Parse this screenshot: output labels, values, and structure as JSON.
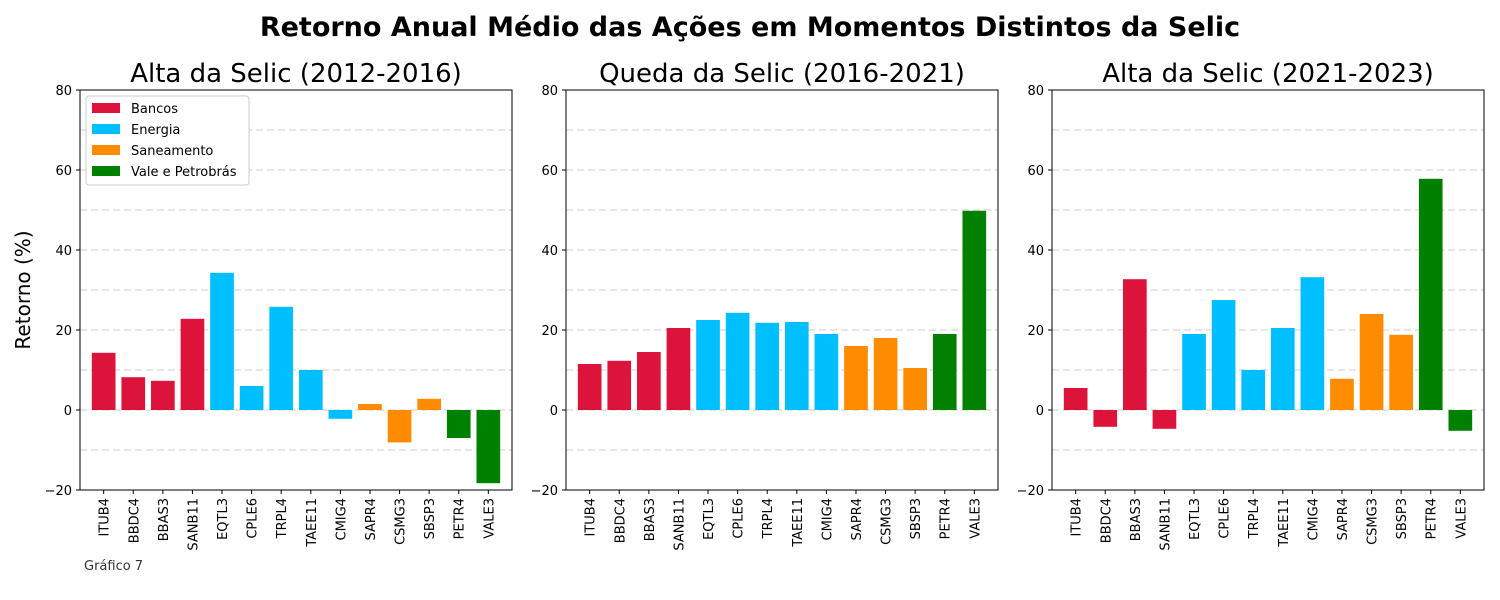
{
  "figure": {
    "title": "Retorno Anual Médio das Ações em Momentos Distintos da Selic",
    "caption": "Gráfico 7",
    "ylabel": "Retorno (%)"
  },
  "colors": {
    "Bancos": "#dc143c",
    "Energia": "#00bfff",
    "Saneamento": "#ff8c00",
    "Vale e Petrobrás": "#008000"
  },
  "legend": {
    "placement": "top-left",
    "entries": [
      "Bancos",
      "Energia",
      "Saneamento",
      "Vale e Petrobrás"
    ]
  },
  "chart_data": [
    {
      "type": "bar",
      "title": "Alta da Selic (2012-2016)",
      "categories": [
        "ITUB4",
        "BBDC4",
        "BBAS3",
        "SANB11",
        "EQTL3",
        "CPLE6",
        "TRPL4",
        "TAEE11",
        "CMIG4",
        "SAPR4",
        "CSMG3",
        "SBSP3",
        "PETR4",
        "VALE3"
      ],
      "groups": [
        "Bancos",
        "Bancos",
        "Bancos",
        "Bancos",
        "Energia",
        "Energia",
        "Energia",
        "Energia",
        "Energia",
        "Saneamento",
        "Saneamento",
        "Saneamento",
        "Vale e Petrobrás",
        "Vale e Petrobrás"
      ],
      "values": [
        14.3,
        8.2,
        7.3,
        22.8,
        34.3,
        6.0,
        25.8,
        10.0,
        -2.2,
        1.5,
        -8.1,
        2.8,
        -7.0,
        -18.3
      ],
      "ylim": [
        -20,
        80
      ],
      "yticks": [
        -20,
        0,
        20,
        40,
        60,
        80
      ],
      "grid": "horizontal dashed",
      "has_legend": true
    },
    {
      "type": "bar",
      "title": "Queda da Selic (2016-2021)",
      "categories": [
        "ITUB4",
        "BBDC4",
        "BBAS3",
        "SANB11",
        "EQTL3",
        "CPLE6",
        "TRPL4",
        "TAEE11",
        "CMIG4",
        "SAPR4",
        "CSMG3",
        "SBSP3",
        "PETR4",
        "VALE3"
      ],
      "groups": [
        "Bancos",
        "Bancos",
        "Bancos",
        "Bancos",
        "Energia",
        "Energia",
        "Energia",
        "Energia",
        "Energia",
        "Saneamento",
        "Saneamento",
        "Saneamento",
        "Vale e Petrobrás",
        "Vale e Petrobrás"
      ],
      "values": [
        11.5,
        12.3,
        14.5,
        20.5,
        22.5,
        24.3,
        21.8,
        22.0,
        19.0,
        16.0,
        18.0,
        10.5,
        19.0,
        49.8
      ],
      "ylim": [
        -20,
        80
      ],
      "yticks": [
        -20,
        0,
        20,
        40,
        60,
        80
      ],
      "grid": "horizontal dashed",
      "has_legend": false
    },
    {
      "type": "bar",
      "title": "Alta da Selic (2021-2023)",
      "categories": [
        "ITUB4",
        "BBDC4",
        "BBAS3",
        "SANB11",
        "EQTL3",
        "CPLE6",
        "TRPL4",
        "TAEE11",
        "CMIG4",
        "SAPR4",
        "CSMG3",
        "SBSP3",
        "PETR4",
        "VALE3"
      ],
      "groups": [
        "Bancos",
        "Bancos",
        "Bancos",
        "Bancos",
        "Energia",
        "Energia",
        "Energia",
        "Energia",
        "Energia",
        "Saneamento",
        "Saneamento",
        "Saneamento",
        "Vale e Petrobrás",
        "Vale e Petrobrás"
      ],
      "values": [
        5.5,
        -4.2,
        32.7,
        -4.7,
        19.0,
        27.5,
        10.0,
        20.5,
        33.2,
        7.8,
        24.0,
        18.8,
        57.8,
        -5.2
      ],
      "ylim": [
        -20,
        80
      ],
      "yticks": [
        -20,
        0,
        20,
        40,
        60,
        80
      ],
      "grid": "horizontal dashed",
      "has_legend": false
    }
  ]
}
